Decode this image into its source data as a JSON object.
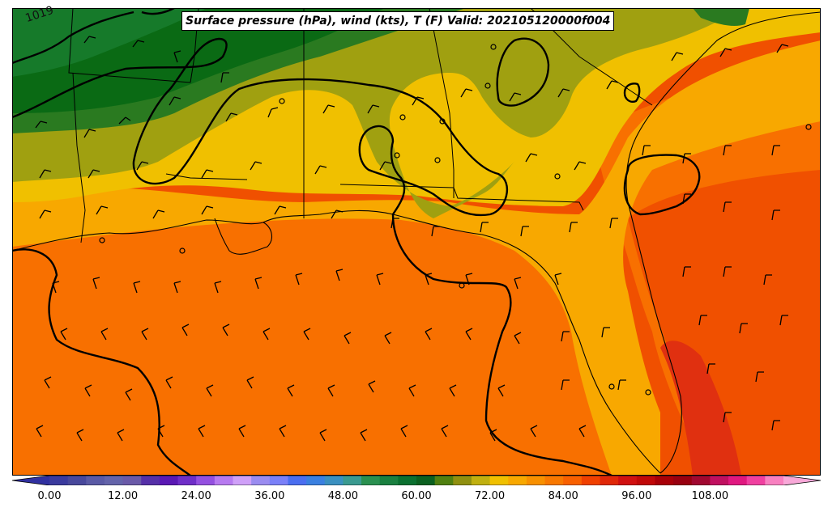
{
  "title": "Surface pressure (hPa), wind (kts), T (F) Valid: 202105120000f004",
  "isobar_label": "1019",
  "colorbar": {
    "ticks": [
      "0.00",
      "12.00",
      "24.00",
      "36.00",
      "48.00",
      "60.00",
      "72.00",
      "84.00",
      "96.00",
      "108.00"
    ],
    "colors": [
      "#3a3a9e",
      "#48489c",
      "#5a5aa5",
      "#6464aa",
      "#6a5aa8",
      "#5530a8",
      "#5a18b4",
      "#6f2ec8",
      "#9450e0",
      "#b77af0",
      "#cfa0f8",
      "#9a8cf0",
      "#7a80f8",
      "#4a6ef0",
      "#3a80e0",
      "#3a90c0",
      "#3a9a90",
      "#2a9050",
      "#1a8040",
      "#0a7030",
      "#0a6020",
      "#508010",
      "#909010",
      "#c0b010",
      "#f0c000",
      "#f8a800",
      "#f89000",
      "#f87800",
      "#f86000",
      "#f04000",
      "#e02808",
      "#d01010",
      "#c00808",
      "#a80008",
      "#980010",
      "#a00830",
      "#c01060",
      "#e01880",
      "#f040a0",
      "#f880c0"
    ]
  },
  "colors": {
    "dark_green": "#0a6a14",
    "mid_green": "#167a2a",
    "olive": "#a0a010",
    "yellow": "#f0c000",
    "light_orange": "#f8a800",
    "orange": "#f87000",
    "red_orange": "#f05000",
    "deep_red_orange": "#e03010"
  }
}
